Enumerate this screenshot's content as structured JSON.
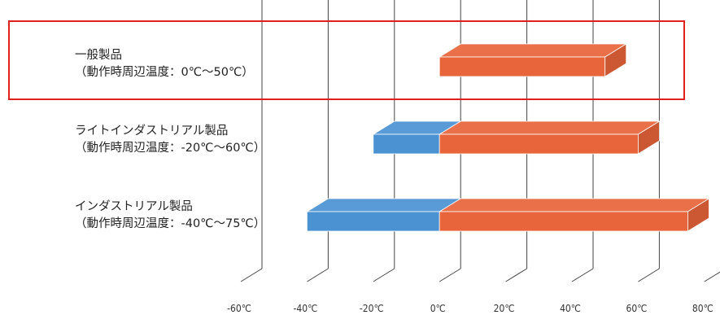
{
  "chart_data": {
    "type": "bar",
    "orientation": "horizontal",
    "style": "floating-range-3d",
    "categories": [
      {
        "name_line1": "一般製品",
        "name_line2": "（動作時周辺温度：0℃～50℃）",
        "range": [
          0,
          50
        ],
        "segments": [
          {
            "from": 0,
            "to": 50,
            "color": "#e8643a"
          }
        ],
        "highlighted": true
      },
      {
        "name_line1": "ライトインダストリアル製品",
        "name_line2": "（動作時周辺温度：-20℃～60℃）",
        "range": [
          -20,
          60
        ],
        "segments": [
          {
            "from": -20,
            "to": 0,
            "color": "#4b92d2"
          },
          {
            "from": 0,
            "to": 60,
            "color": "#e8643a"
          }
        ],
        "highlighted": false
      },
      {
        "name_line1": "インダストリアル製品",
        "name_line2": "（動作時周辺温度：-40℃～75℃）",
        "range": [
          -40,
          75
        ],
        "segments": [
          {
            "from": -40,
            "to": 0,
            "color": "#4b92d2"
          },
          {
            "from": 0,
            "to": 75,
            "color": "#e8643a"
          }
        ],
        "highlighted": false
      }
    ],
    "x_ticks": [
      -60,
      -40,
      -20,
      0,
      20,
      40,
      60,
      80
    ],
    "x_tick_labels": [
      "-60℃",
      "-40℃",
      "-20℃",
      "0℃",
      "20℃",
      "40℃",
      "60℃",
      "80℃"
    ],
    "xlim": [
      -60,
      80
    ],
    "grid": true,
    "colors": {
      "cold": "#4b92d2",
      "hot": "#e8643a",
      "highlight_box": "#e0201e",
      "grid": "#444444"
    }
  }
}
